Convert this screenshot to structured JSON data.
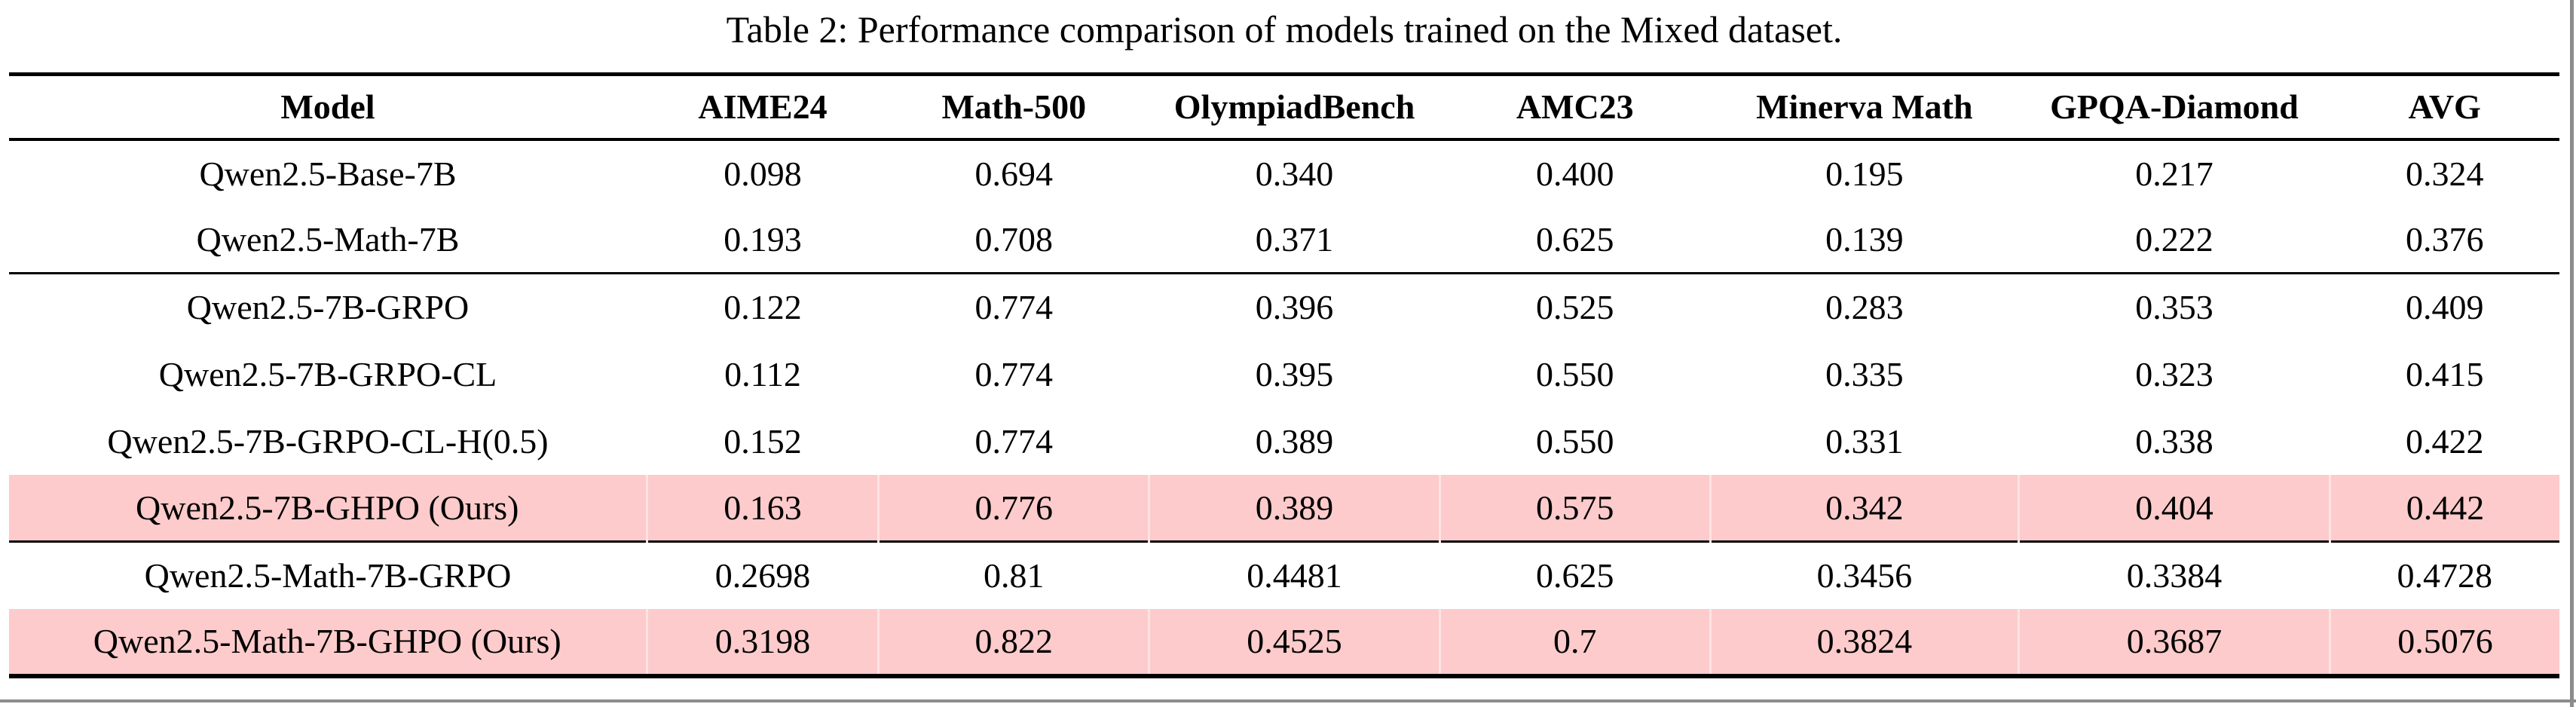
{
  "caption": "Table 2: Performance comparison of models trained on the Mixed dataset.",
  "colors": {
    "highlight_row": "#fdcbcb",
    "highlight_cell_divider": "#ffe3e3",
    "rule": "#000000",
    "screenshot_edge_line": "#8c8c8c",
    "text": "#000000",
    "background": "#ffffff"
  },
  "table": {
    "columns": [
      {
        "label": "Model"
      },
      {
        "label": "AIME24"
      },
      {
        "label": "Math-500"
      },
      {
        "label": "OlympiadBench"
      },
      {
        "label": "AMC23"
      },
      {
        "label": "Minerva Math"
      },
      {
        "label": "GPQA-Diamond"
      },
      {
        "label": "AVG"
      }
    ],
    "rows": [
      {
        "model": "Qwen2.5-Base-7B",
        "values": [
          "0.098",
          "0.694",
          "0.340",
          "0.400",
          "0.195",
          "0.217",
          "0.324"
        ],
        "highlight": false,
        "rule_after": false
      },
      {
        "model": "Qwen2.5-Math-7B",
        "values": [
          "0.193",
          "0.708",
          "0.371",
          "0.625",
          "0.139",
          "0.222",
          "0.376"
        ],
        "highlight": false,
        "rule_after": true
      },
      {
        "model": "Qwen2.5-7B-GRPO",
        "values": [
          "0.122",
          "0.774",
          "0.396",
          "0.525",
          "0.283",
          "0.353",
          "0.409"
        ],
        "highlight": false,
        "rule_after": false
      },
      {
        "model": "Qwen2.5-7B-GRPO-CL",
        "values": [
          "0.112",
          "0.774",
          "0.395",
          "0.550",
          "0.335",
          "0.323",
          "0.415"
        ],
        "highlight": false,
        "rule_after": false
      },
      {
        "model": "Qwen2.5-7B-GRPO-CL-H(0.5)",
        "values": [
          "0.152",
          "0.774",
          "0.389",
          "0.550",
          "0.331",
          "0.338",
          "0.422"
        ],
        "highlight": false,
        "rule_after": false
      },
      {
        "model": "Qwen2.5-7B-GHPO (Ours)",
        "values": [
          "0.163",
          "0.776",
          "0.389",
          "0.575",
          "0.342",
          "0.404",
          "0.442"
        ],
        "highlight": true,
        "rule_after": true
      },
      {
        "model": "Qwen2.5-Math-7B-GRPO",
        "values": [
          "0.2698",
          "0.81",
          "0.4481",
          "0.625",
          "0.3456",
          "0.3384",
          "0.4728"
        ],
        "highlight": false,
        "rule_after": false
      },
      {
        "model": "Qwen2.5-Math-7B-GHPO (Ours)",
        "values": [
          "0.3198",
          "0.822",
          "0.4525",
          "0.7",
          "0.3824",
          "0.3687",
          "0.5076"
        ],
        "highlight": true,
        "rule_after": false
      }
    ]
  }
}
